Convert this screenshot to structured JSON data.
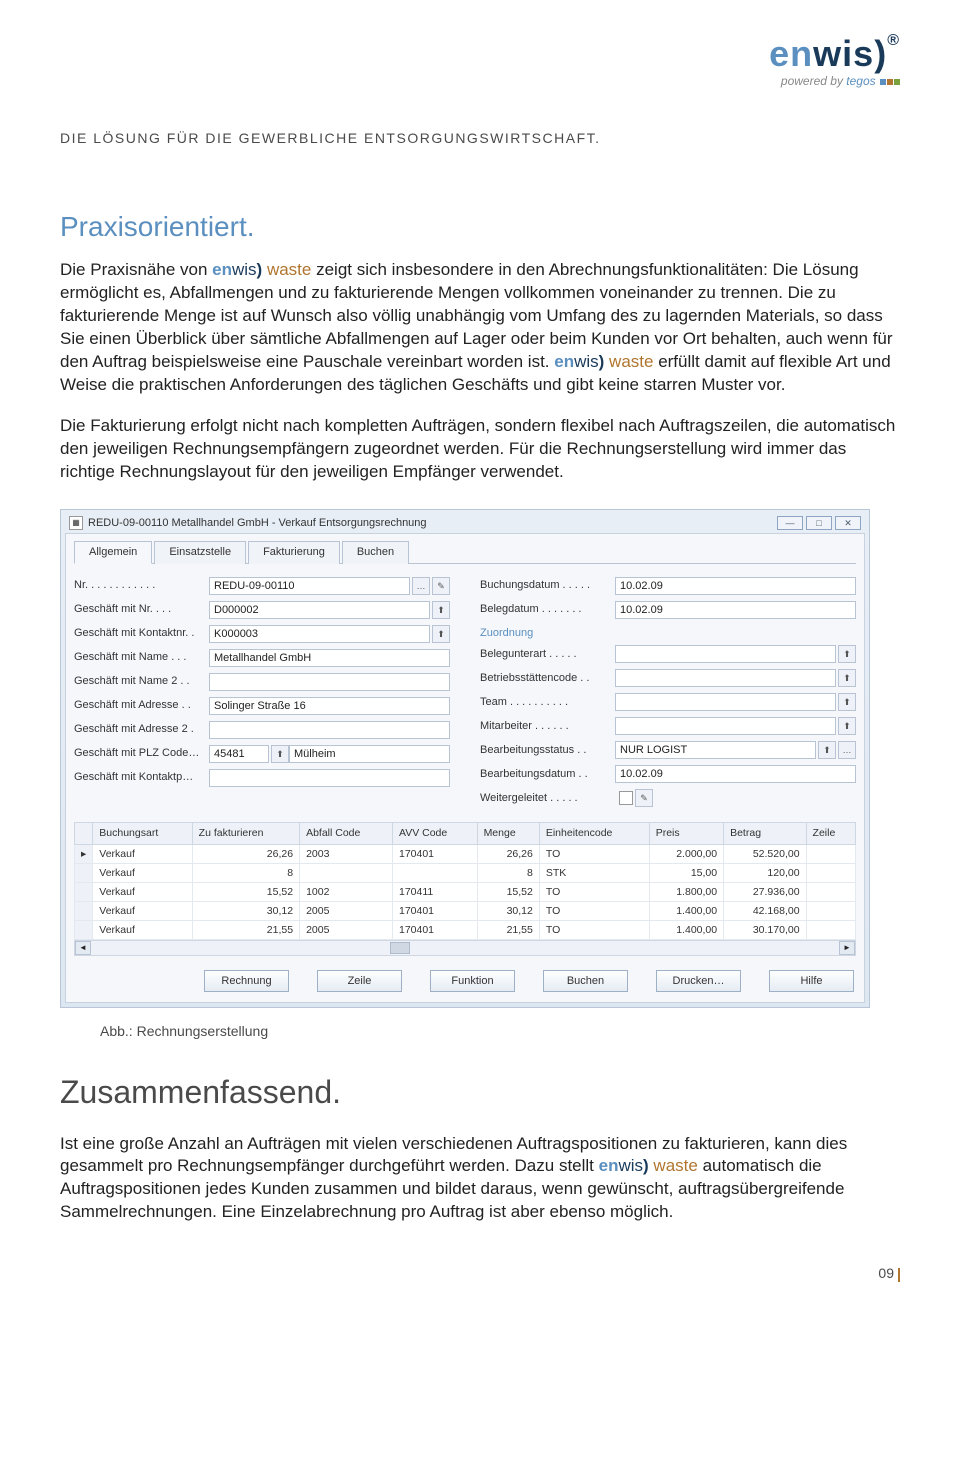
{
  "logo": {
    "en": "en",
    "wis": "wis",
    "paren": ")",
    "reg": "®",
    "powered": "powered by ",
    "tegos": "tegos"
  },
  "bar_colors": [
    "#5a8fbf",
    "#b0752e",
    "#7aa23c"
  ],
  "tagline": "DIE LÖSUNG FÜR DIE GEWERBLICHE ENTSORGUNGSWIRTSCHAFT.",
  "section1_title": "Praxisorientiert.",
  "brand": {
    "en": "en",
    "wis": "wis",
    "paren": ")",
    "waste": " waste"
  },
  "para1_a": "Die Praxisnähe von ",
  "para1_b": " zeigt sich insbesondere in den Abrechnungsfunktionalitäten: Die Lösung ermöglicht es,  Abfallmengen und zu fakturierende Mengen vollkommen voneinander zu trennen. Die zu fakturierende Menge ist auf Wunsch also völlig unabhängig vom Umfang des zu lagernden Materials, so dass Sie einen Überblick über sämtliche Abfallmengen auf Lager oder beim Kunden vor Ort behalten, auch wenn für den Auftrag beispielsweise eine Pauschale vereinbart worden ist. ",
  "para1_c": " erfüllt damit auf flexible Art und Weise die praktischen Anforderungen des täglichen Geschäfts und gibt keine starren Muster vor.",
  "para2": "Die Fakturierung erfolgt nicht nach kompletten Aufträgen, sondern flexibel nach Auftragszeilen, die automatisch den jeweiligen Rechnungsempfängern zugeordnet werden. Für die Rechnungserstellung wird immer das richtige Rechnungslayout für den jeweiligen Empfänger verwendet.",
  "window": {
    "title": "REDU-09-00110 Metallhandel GmbH - Verkauf Entsorgungsrechnung",
    "tabs": [
      "Allgemein",
      "Einsatzstelle",
      "Fakturierung",
      "Buchen"
    ],
    "left_fields": [
      {
        "label": "Nr. . . . . . . . . . . .",
        "value": "REDU-09-00110",
        "btns": [
          "…",
          "✎"
        ]
      },
      {
        "label": "Geschäft mit Nr. . . .",
        "value": "D000002",
        "btns": [
          "⬆"
        ]
      },
      {
        "label": "Geschäft mit Kontaktnr. .",
        "value": "K000003",
        "btns": [
          "⬆"
        ]
      },
      {
        "label": "Geschäft mit Name . . .",
        "value": "Metallhandel GmbH",
        "btns": []
      },
      {
        "label": "Geschäft mit Name 2 . .",
        "value": "",
        "btns": []
      },
      {
        "label": "Geschäft mit Adresse . .",
        "value": "Solinger Straße 16",
        "btns": []
      },
      {
        "label": "Geschäft mit Adresse 2 .",
        "value": "",
        "btns": []
      },
      {
        "label": "Geschäft mit PLZ Code…",
        "value": "45481",
        "value2": "Mülheim",
        "btns": [
          "⬆"
        ]
      },
      {
        "label": "Geschäft mit Kontaktp…",
        "value": "",
        "btns": []
      }
    ],
    "right_fields_a": [
      {
        "label": "Buchungsdatum . . . . .",
        "value": "10.02.09"
      },
      {
        "label": "Belegdatum . . . . . . .",
        "value": "10.02.09"
      }
    ],
    "zuordnung_title": "Zuordnung",
    "right_fields_b": [
      {
        "label": "Belegunterart . . . . .",
        "value": "",
        "btns": [
          "⬆"
        ]
      },
      {
        "label": "Betriebsstättencode . .",
        "value": "",
        "btns": [
          "⬆"
        ]
      },
      {
        "label": "Team . . . . . . . . . .",
        "value": "",
        "btns": [
          "⬆"
        ]
      },
      {
        "label": "Mitarbeiter . . . . . .",
        "value": "",
        "btns": [
          "⬆"
        ]
      },
      {
        "label": "Bearbeitungsstatus . .",
        "value": "NUR LOGIST",
        "btns": [
          "⬆",
          "…"
        ]
      },
      {
        "label": "Bearbeitungsdatum . .",
        "value": "10.02.09",
        "btns": []
      },
      {
        "label": "Weitergeleitet . . . . .",
        "checkbox": true,
        "btns": [
          "✎"
        ]
      }
    ],
    "table": {
      "columns": [
        "",
        "Buchungsart",
        "Zu fakturieren",
        "Abfall Code",
        "AVV Code",
        "Menge",
        "Einheitencode",
        "Preis",
        "Betrag",
        "Zeile"
      ],
      "rows": [
        [
          "▸",
          "Verkauf",
          "26,26",
          "2003",
          "170401",
          "26,26",
          "TO",
          "2.000,00",
          "52.520,00",
          ""
        ],
        [
          "",
          "Verkauf",
          "8",
          "",
          "",
          "8",
          "STK",
          "15,00",
          "120,00",
          ""
        ],
        [
          "",
          "Verkauf",
          "15,52",
          "1002",
          "170411",
          "15,52",
          "TO",
          "1.800,00",
          "27.936,00",
          ""
        ],
        [
          "",
          "Verkauf",
          "30,12",
          "2005",
          "170401",
          "30,12",
          "TO",
          "1.400,00",
          "42.168,00",
          ""
        ],
        [
          "",
          "Verkauf",
          "21,55",
          "2005",
          "170401",
          "21,55",
          "TO",
          "1.400,00",
          "30.170,00",
          ""
        ]
      ]
    },
    "buttons": [
      "Rechnung",
      "Zeile",
      "Funktion",
      "Buchen",
      "Drucken…",
      "Hilfe"
    ]
  },
  "caption": "Abb.: Rechnungserstellung",
  "summary_title": "Zusammenfassend.",
  "para3_a": "Ist eine große Anzahl an Aufträgen mit vielen verschiedenen Auftragspositionen zu fakturieren, kann dies gesammelt pro Rechnungsempfänger durchgeführt werden. Dazu stellt ",
  "para3_b": " automatisch die Auftragspositionen jedes Kunden zusammen und bildet daraus, wenn gewünscht, auftragsübergreifende Sammelrechnungen. Eine Einzelabrechnung pro Auftrag ist aber ebenso möglich.",
  "page_num": "09"
}
